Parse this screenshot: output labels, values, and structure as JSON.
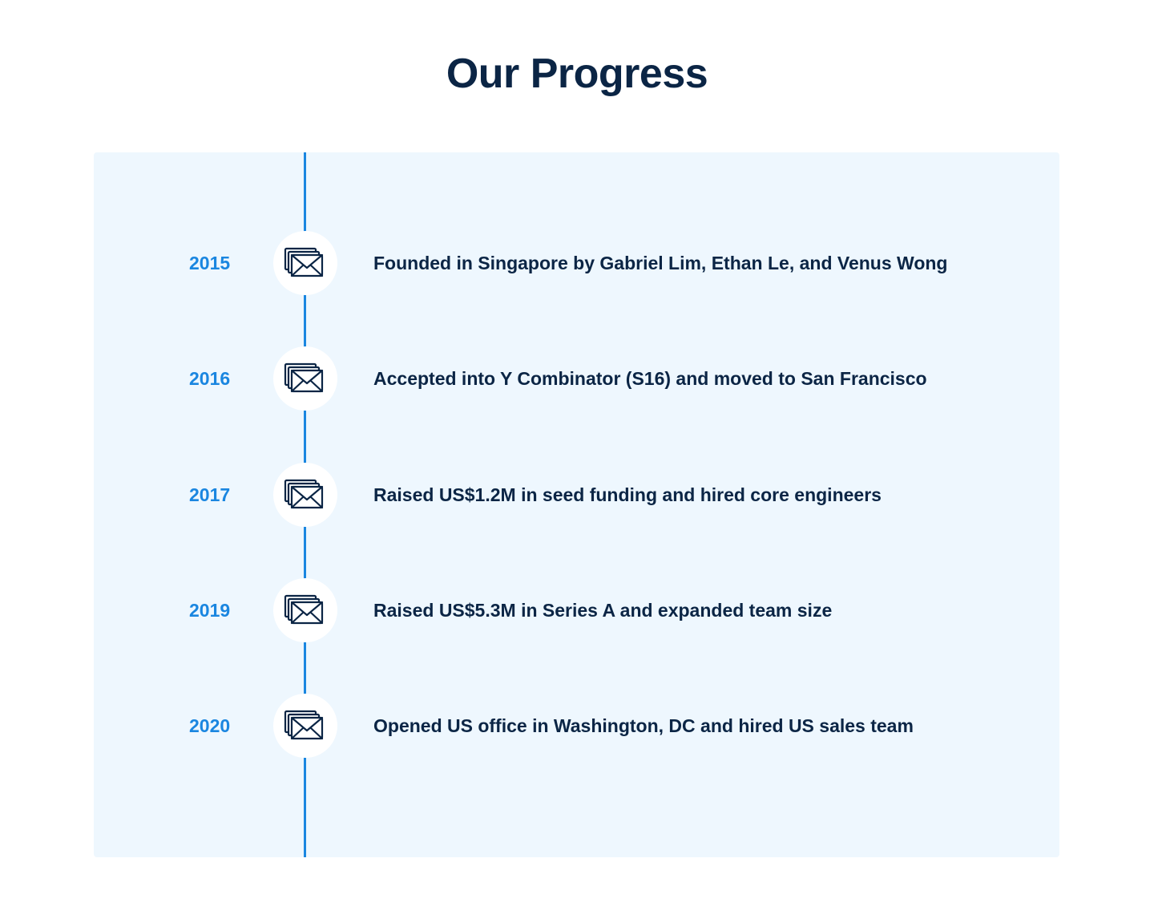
{
  "header": {
    "title": "Our Progress"
  },
  "colors": {
    "accent": "#1a86e0",
    "heading": "#0b2545",
    "panel_background": "#eef7fe",
    "icon_background": "#ffffff"
  },
  "timeline": {
    "milestones": [
      {
        "year": "2015",
        "icon": "envelopes-icon",
        "description": "Founded in Singapore by Gabriel Lim, Ethan Le, and Venus Wong"
      },
      {
        "year": "2016",
        "icon": "envelopes-icon",
        "description": "Accepted into Y Combinator (S16) and moved to San Francisco"
      },
      {
        "year": "2017",
        "icon": "envelopes-icon",
        "description": "Raised US$1.2M in seed funding and hired core engineers"
      },
      {
        "year": "2019",
        "icon": "envelopes-icon",
        "description": "Raised US$5.3M in Series A and expanded team size"
      },
      {
        "year": "2020",
        "icon": "envelopes-icon",
        "description": "Opened US office in Washington, DC and hired US sales team"
      }
    ]
  }
}
